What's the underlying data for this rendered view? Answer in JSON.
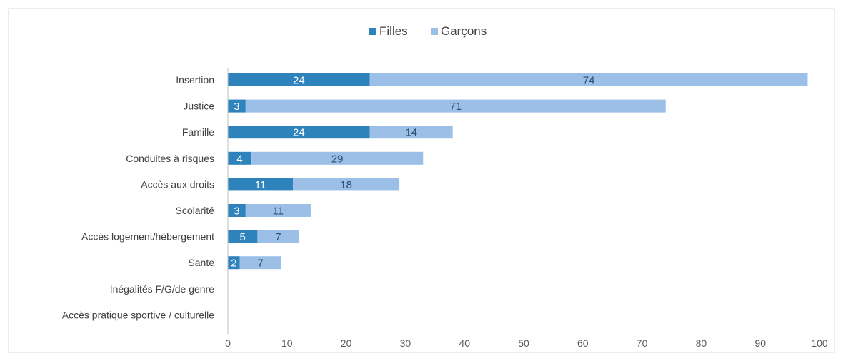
{
  "chart_data": {
    "type": "bar",
    "orientation": "horizontal",
    "stacked": true,
    "title": "",
    "xlabel": "",
    "ylabel": "",
    "categories": [
      "Insertion",
      "Justice",
      "Famille",
      "Conduites à risques",
      "Accès aux droits",
      "Scolarité",
      "Accès logement/hébergement",
      "Sante",
      "Inégalités F/G/de genre",
      "Accès pratique sportive / culturelle"
    ],
    "series": [
      {
        "name": "Filles",
        "color": "#2e83bd",
        "label_color": "#ffffff",
        "values": [
          24,
          3,
          24,
          4,
          11,
          3,
          5,
          2,
          0,
          0
        ]
      },
      {
        "name": "Garçons",
        "color": "#9bbfe6",
        "label_color": "#2f4d6e",
        "values": [
          74,
          71,
          14,
          29,
          18,
          11,
          7,
          7,
          0,
          0
        ]
      }
    ],
    "xlim": [
      0,
      100
    ],
    "xticks": [
      0,
      10,
      20,
      30,
      40,
      50,
      60,
      70,
      80,
      90,
      100
    ],
    "grid": false,
    "legend_position": "top-center"
  }
}
